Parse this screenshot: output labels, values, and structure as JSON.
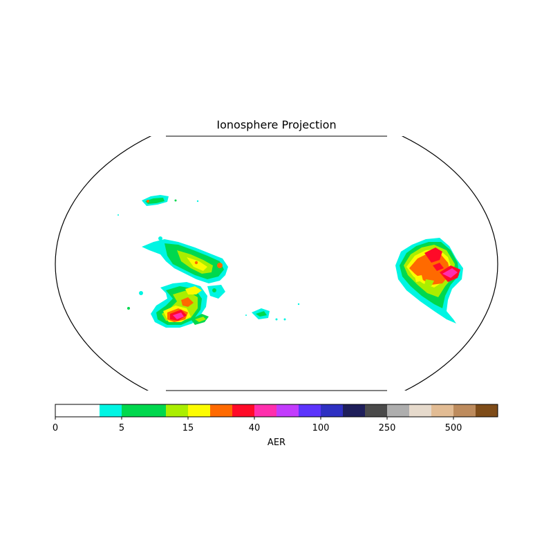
{
  "title": "Ionosphere Projection",
  "colorbar": {
    "label": "AER",
    "tick_labels": [
      "0",
      "5",
      "15",
      "40",
      "100",
      "250",
      "500"
    ],
    "colors": [
      "#ffffff",
      "#ffffff",
      "#00f5e3",
      "#00d84e",
      "#00d84e",
      "#aaee00",
      "#fcfc00",
      "#ff6a00",
      "#ff0a28",
      "#ff2fad",
      "#c23cfc",
      "#5c34fc",
      "#2e30c2",
      "#1e1e5a",
      "#4a4a4a",
      "#aeaeae",
      "#e6dacc",
      "#e2bc94",
      "#bd8b5d",
      "#7e4c19"
    ]
  },
  "map": {
    "projection": "Robinson",
    "features": [
      {
        "name": "western-north-cluster",
        "colors": [
          "#00f5e3",
          "#00d84e",
          "#ff6a00"
        ]
      },
      {
        "name": "western-central-cluster",
        "colors": [
          "#00f5e3",
          "#00d84e",
          "#aaee00",
          "#fcfc00",
          "#ff6a00"
        ]
      },
      {
        "name": "western-south-cluster",
        "colors": [
          "#00f5e3",
          "#00d84e",
          "#aaee00",
          "#fcfc00",
          "#ff6a00",
          "#ff0a28",
          "#ff2fad"
        ]
      },
      {
        "name": "central-south-patch",
        "colors": [
          "#00f5e3",
          "#00d84e"
        ]
      },
      {
        "name": "eastern-cluster",
        "colors": [
          "#00f5e3",
          "#00d84e",
          "#aaee00",
          "#fcfc00",
          "#ff6a00",
          "#ff0a28",
          "#ff2fad"
        ]
      }
    ]
  }
}
